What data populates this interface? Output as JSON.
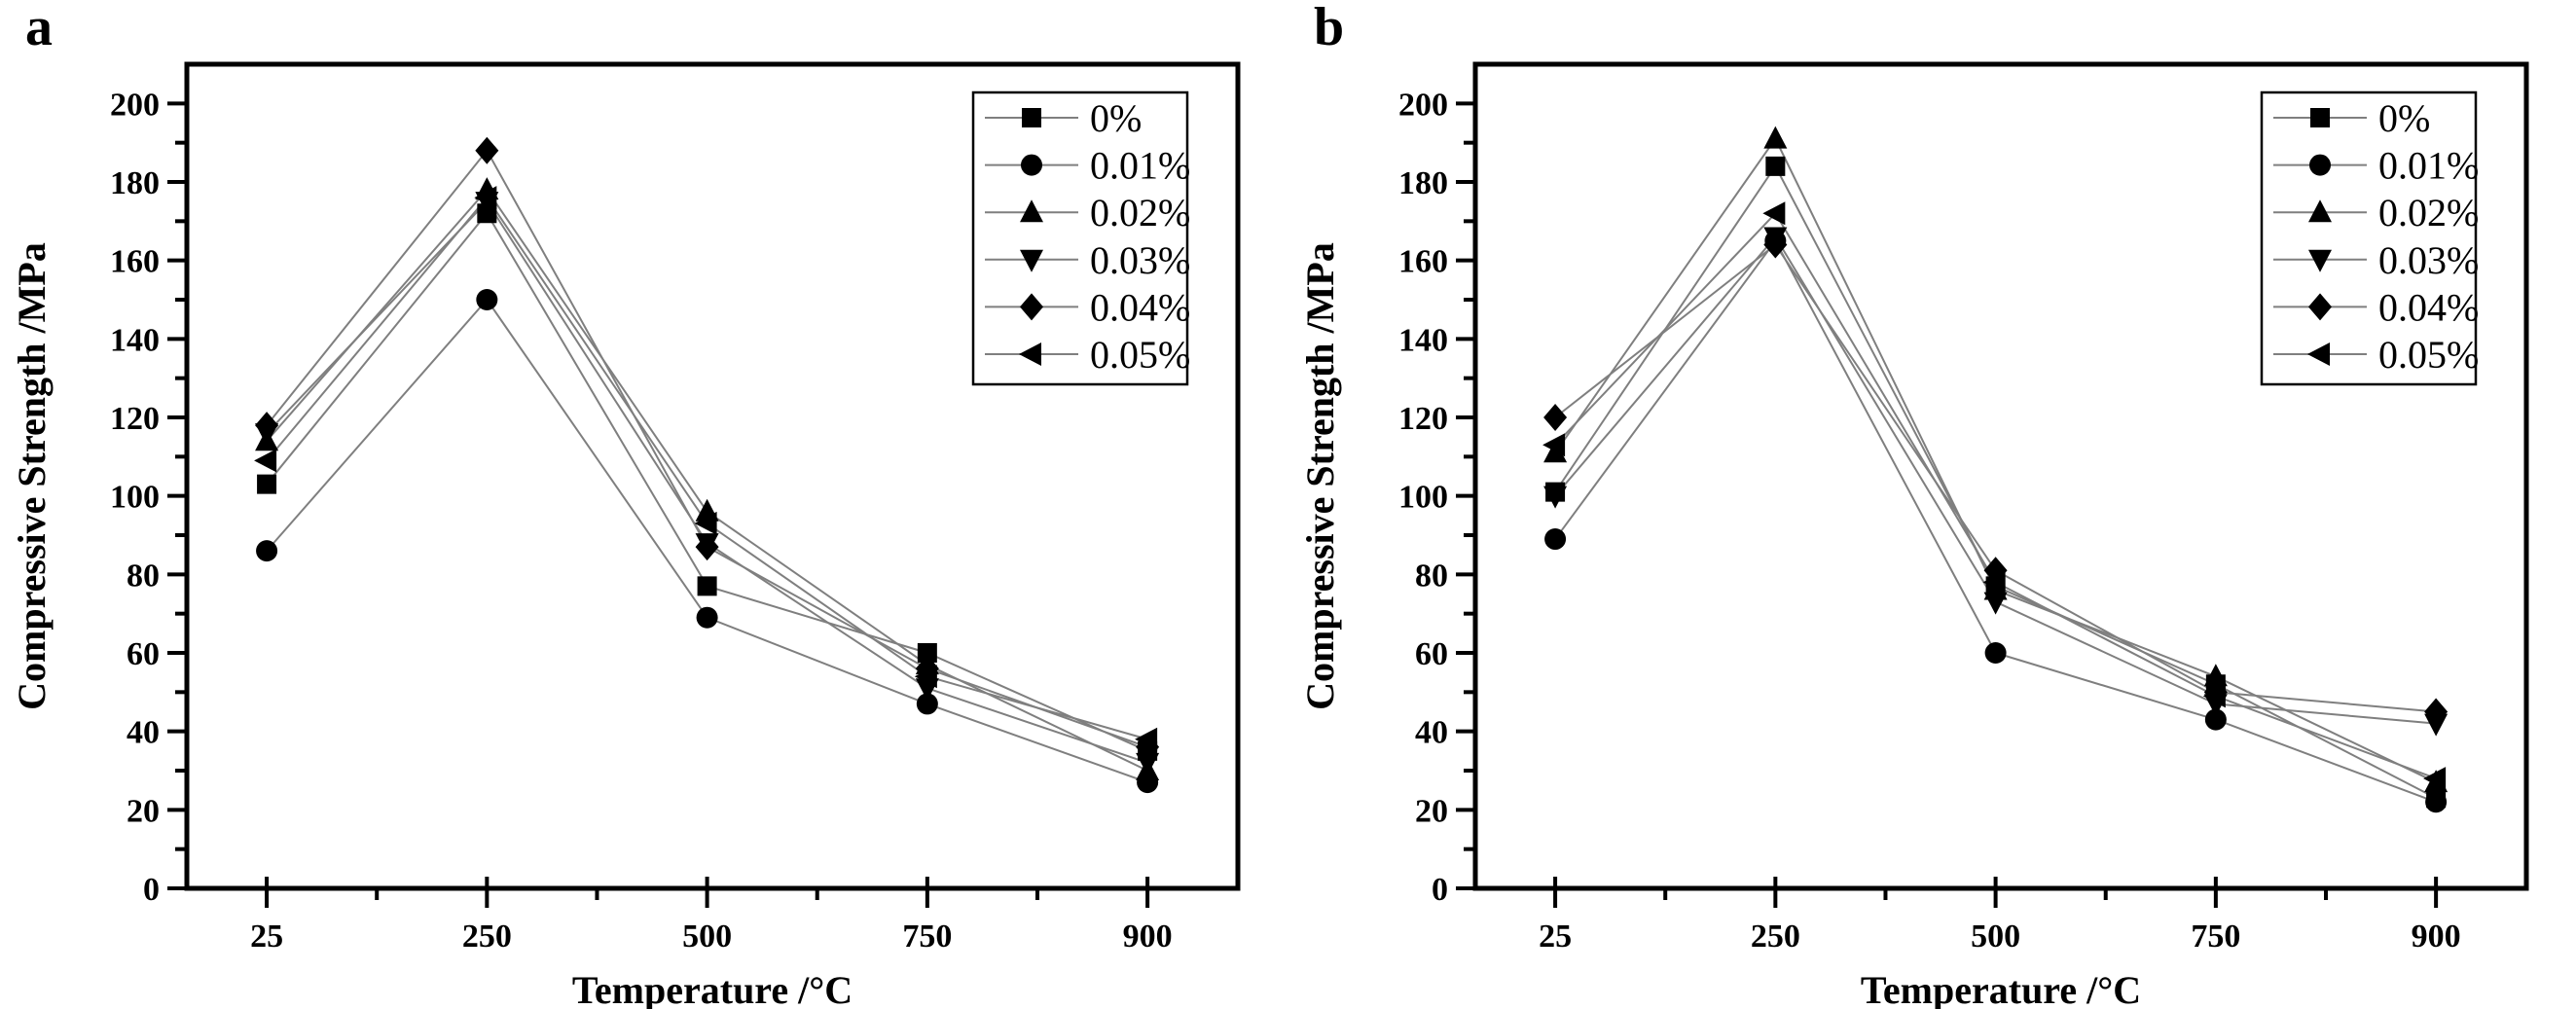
{
  "figure": {
    "description": "Two line charts of compressive strength versus temperature for six dopant percentages",
    "marker_color": "#000000",
    "line_color": "#7f7f7f",
    "background": "#ffffff"
  },
  "chart_data": [
    {
      "type": "line",
      "title": "a",
      "xlabel": "Temperature /°C",
      "ylabel": "Compressive Strength /MPa",
      "categories": [
        25,
        250,
        500,
        750,
        900
      ],
      "xticklabels": [
        "25",
        "250",
        "500",
        "750",
        "900"
      ],
      "yticks": [
        0,
        20,
        40,
        60,
        80,
        100,
        120,
        140,
        160,
        180,
        200
      ],
      "ylim": [
        0,
        210
      ],
      "grid": false,
      "legend_position": "top-right",
      "legend_labels": [
        "0%",
        "0.01%",
        "0.02%",
        "0.03%",
        "0.04%",
        "0.05%"
      ],
      "series": [
        {
          "name": "0%",
          "marker": "square",
          "values": [
            103,
            172,
            77,
            60,
            35
          ]
        },
        {
          "name": "0.01%",
          "marker": "circle",
          "values": [
            86,
            150,
            69,
            47,
            27
          ]
        },
        {
          "name": "0.02%",
          "marker": "triangle-up",
          "values": [
            114,
            178,
            96,
            57,
            30
          ]
        },
        {
          "name": "0.03%",
          "marker": "triangle-down",
          "values": [
            116,
            175,
            88,
            51,
            32
          ]
        },
        {
          "name": "0.04%",
          "marker": "diamond",
          "values": [
            118,
            188,
            87,
            56,
            36
          ]
        },
        {
          "name": "0.05%",
          "marker": "triangle-left",
          "values": [
            109,
            176,
            93,
            54,
            38
          ]
        }
      ]
    },
    {
      "type": "line",
      "title": "b",
      "xlabel": "Temperature /°C",
      "ylabel": "Compressive Strength /MPa",
      "categories": [
        25,
        250,
        500,
        750,
        900
      ],
      "xticklabels": [
        "25",
        "250",
        "500",
        "750",
        "900"
      ],
      "yticks": [
        0,
        20,
        40,
        60,
        80,
        100,
        120,
        140,
        160,
        180,
        200
      ],
      "ylim": [
        0,
        210
      ],
      "grid": false,
      "legend_position": "top-right",
      "legend_labels": [
        "0%",
        "0.01%",
        "0.02%",
        "0.03%",
        "0.04%",
        "0.05%"
      ],
      "series": [
        {
          "name": "0%",
          "marker": "square",
          "values": [
            101,
            184,
            77,
            52,
            23
          ]
        },
        {
          "name": "0.01%",
          "marker": "circle",
          "values": [
            89,
            165,
            60,
            43,
            22
          ]
        },
        {
          "name": "0.02%",
          "marker": "triangle-up",
          "values": [
            111,
            191,
            76,
            54,
            27
          ]
        },
        {
          "name": "0.03%",
          "marker": "triangle-down",
          "values": [
            100,
            166,
            73,
            47,
            42
          ]
        },
        {
          "name": "0.04%",
          "marker": "diamond",
          "values": [
            120,
            164,
            81,
            50,
            45
          ]
        },
        {
          "name": "0.05%",
          "marker": "triangle-left",
          "values": [
            113,
            172,
            78,
            49,
            28
          ]
        }
      ]
    }
  ]
}
